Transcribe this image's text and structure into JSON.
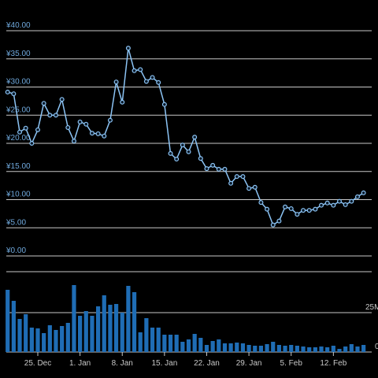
{
  "chart_data": {
    "type": "line",
    "categories": [
      null,
      null,
      null,
      null,
      null,
      "25. Dec",
      null,
      null,
      null,
      null,
      null,
      null,
      "1. Jan",
      null,
      null,
      null,
      null,
      null,
      null,
      "8. Jan",
      null,
      null,
      null,
      null,
      null,
      null,
      "15. Jan",
      null,
      null,
      null,
      null,
      null,
      null,
      "22. Jan",
      null,
      null,
      null,
      null,
      null,
      null,
      "29. Jan",
      null,
      null,
      null,
      null,
      null,
      null,
      "5. Feb",
      null,
      null,
      null,
      null,
      null,
      null,
      "12. Feb",
      null,
      null,
      null,
      null,
      null
    ],
    "series": [
      {
        "type": "line",
        "color": "#8cc4f5",
        "values": [
          29.1,
          28.8,
          22.0,
          22.7,
          20.0,
          22.4,
          27.1,
          25.0,
          25.0,
          27.8,
          22.8,
          20.4,
          23.8,
          23.4,
          21.8,
          21.7,
          21.3,
          24.1,
          30.9,
          27.3,
          36.9,
          32.9,
          33.1,
          31.0,
          31.7,
          30.8,
          26.9,
          18.2,
          17.2,
          19.7,
          18.5,
          21.1,
          17.3,
          15.5,
          16.1,
          15.4,
          15.4,
          12.9,
          14.1,
          14.1,
          12.0,
          12.2,
          9.5,
          8.3,
          5.5,
          6.2,
          8.7,
          8.4,
          7.4,
          8.1,
          8.1,
          8.3,
          9.0,
          9.4,
          9.0,
          9.7,
          9.1,
          9.7,
          10.5,
          11.2
        ]
      },
      {
        "type": "bar",
        "axis": "y2",
        "color": "#1f6db5",
        "values": [
          39.5,
          32.5,
          21,
          24,
          15.5,
          15,
          12,
          17,
          14,
          16.5,
          18.5,
          42.5,
          23,
          26,
          23,
          29,
          36,
          30,
          30.5,
          25,
          42,
          38,
          12.5,
          21.5,
          15.5,
          15.5,
          11,
          11,
          11,
          6.5,
          8,
          11.5,
          9,
          4.5,
          7,
          8,
          5.5,
          5.5,
          6,
          5.5,
          4.5,
          4,
          4,
          5,
          6.5,
          4.5,
          4,
          4.5,
          4,
          3.5,
          3,
          3,
          3.5,
          3,
          4,
          2,
          3.5,
          5,
          3.5,
          4.5
        ]
      }
    ],
    "ylim": [
      0,
      40
    ],
    "yticks": [
      {
        "value": 0,
        "label": "¥0.00"
      },
      {
        "value": 5,
        "label": "¥5.00"
      },
      {
        "value": 10,
        "label": "¥10.00"
      },
      {
        "value": 15,
        "label": "¥15.00"
      },
      {
        "value": 20,
        "label": "¥20.00"
      },
      {
        "value": 25,
        "label": "¥25.00"
      },
      {
        "value": 30,
        "label": "¥30.00"
      },
      {
        "value": 35,
        "label": "¥35.00"
      },
      {
        "value": 40,
        "label": "¥40.00"
      }
    ],
    "y2lim": [
      0,
      50
    ],
    "y2ticks": [
      0,
      {
        "value": 25,
        "label": "25M"
      }
    ],
    "grid": true
  }
}
